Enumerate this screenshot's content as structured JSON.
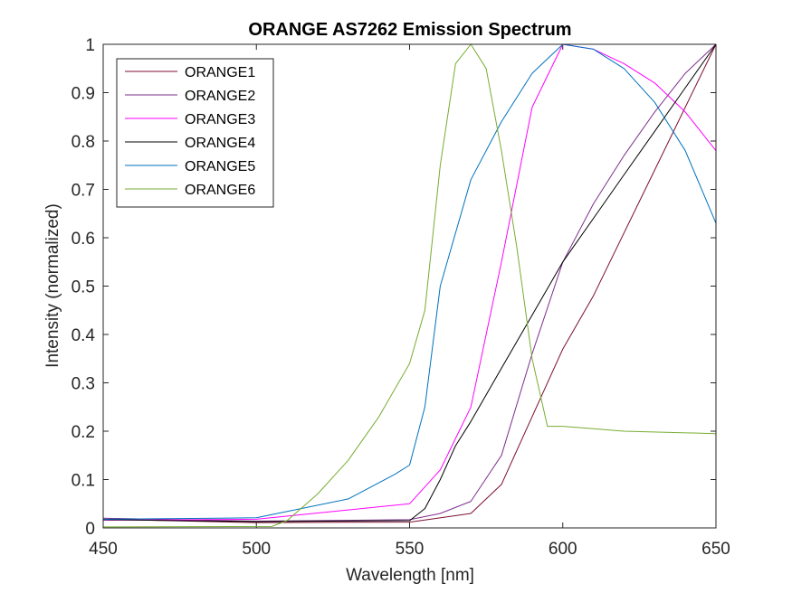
{
  "chart_data": {
    "type": "line",
    "title": "ORANGE AS7262 Emission Spectrum",
    "xlabel": "Wavelength [nm]",
    "ylabel": "Intensity (normalized)",
    "xlim": [
      450,
      650
    ],
    "ylim": [
      0,
      1
    ],
    "xticks": [
      450,
      500,
      550,
      600,
      650
    ],
    "yticks": [
      0,
      0.1,
      0.2,
      0.3,
      0.4,
      0.5,
      0.6,
      0.7,
      0.8,
      0.9,
      1
    ],
    "xtick_labels": [
      "450",
      "500",
      "550",
      "600",
      "650"
    ],
    "ytick_labels": [
      "0",
      "0.1",
      "0.2",
      "0.3",
      "0.4",
      "0.5",
      "0.6",
      "0.7",
      "0.8",
      "0.9",
      "1"
    ],
    "grid": false,
    "legend_position": "top-left",
    "series": [
      {
        "name": "ORANGE1",
        "color": "#7b0e2e",
        "x": [
          450,
          500,
          550,
          570,
          580,
          590,
          600,
          610,
          620,
          630,
          640,
          650
        ],
        "y": [
          0.018,
          0.011,
          0.012,
          0.03,
          0.09,
          0.23,
          0.37,
          0.48,
          0.61,
          0.74,
          0.87,
          1.0
        ]
      },
      {
        "name": "ORANGE2",
        "color": "#7e2f8e",
        "x": [
          450,
          500,
          550,
          560,
          570,
          580,
          590,
          600,
          610,
          620,
          630,
          640,
          650
        ],
        "y": [
          0.02,
          0.014,
          0.017,
          0.03,
          0.055,
          0.15,
          0.36,
          0.55,
          0.67,
          0.77,
          0.86,
          0.94,
          1.0
        ]
      },
      {
        "name": "ORANGE3",
        "color": "#ff00ff",
        "x": [
          450,
          500,
          550,
          560,
          570,
          580,
          590,
          600,
          610,
          620,
          630,
          640,
          650
        ],
        "y": [
          0.016,
          0.018,
          0.05,
          0.12,
          0.25,
          0.55,
          0.87,
          1.0,
          0.99,
          0.96,
          0.92,
          0.86,
          0.78
        ]
      },
      {
        "name": "ORANGE4",
        "color": "#000000",
        "x": [
          450,
          500,
          550,
          555,
          560,
          565,
          570,
          580,
          590,
          600,
          610,
          620,
          630,
          640,
          650
        ],
        "y": [
          0.017,
          0.013,
          0.015,
          0.04,
          0.1,
          0.17,
          0.22,
          0.33,
          0.44,
          0.55,
          0.64,
          0.73,
          0.82,
          0.91,
          1.0
        ]
      },
      {
        "name": "ORANGE5",
        "color": "#0072bd",
        "x": [
          450,
          500,
          530,
          545,
          550,
          555,
          560,
          570,
          580,
          590,
          600,
          610,
          620,
          630,
          640,
          650
        ],
        "y": [
          0.018,
          0.021,
          0.06,
          0.11,
          0.13,
          0.25,
          0.5,
          0.72,
          0.84,
          0.94,
          1.0,
          0.99,
          0.95,
          0.88,
          0.78,
          0.63
        ]
      },
      {
        "name": "ORANGE6",
        "color": "#77ac30",
        "x": [
          450,
          505,
          510,
          520,
          530,
          540,
          550,
          555,
          560,
          565,
          570,
          575,
          580,
          585,
          590,
          595,
          600,
          620,
          650
        ],
        "y": [
          0.002,
          0.003,
          0.015,
          0.07,
          0.14,
          0.23,
          0.34,
          0.45,
          0.75,
          0.96,
          1.0,
          0.95,
          0.78,
          0.58,
          0.35,
          0.21,
          0.21,
          0.2,
          0.195
        ]
      }
    ]
  }
}
